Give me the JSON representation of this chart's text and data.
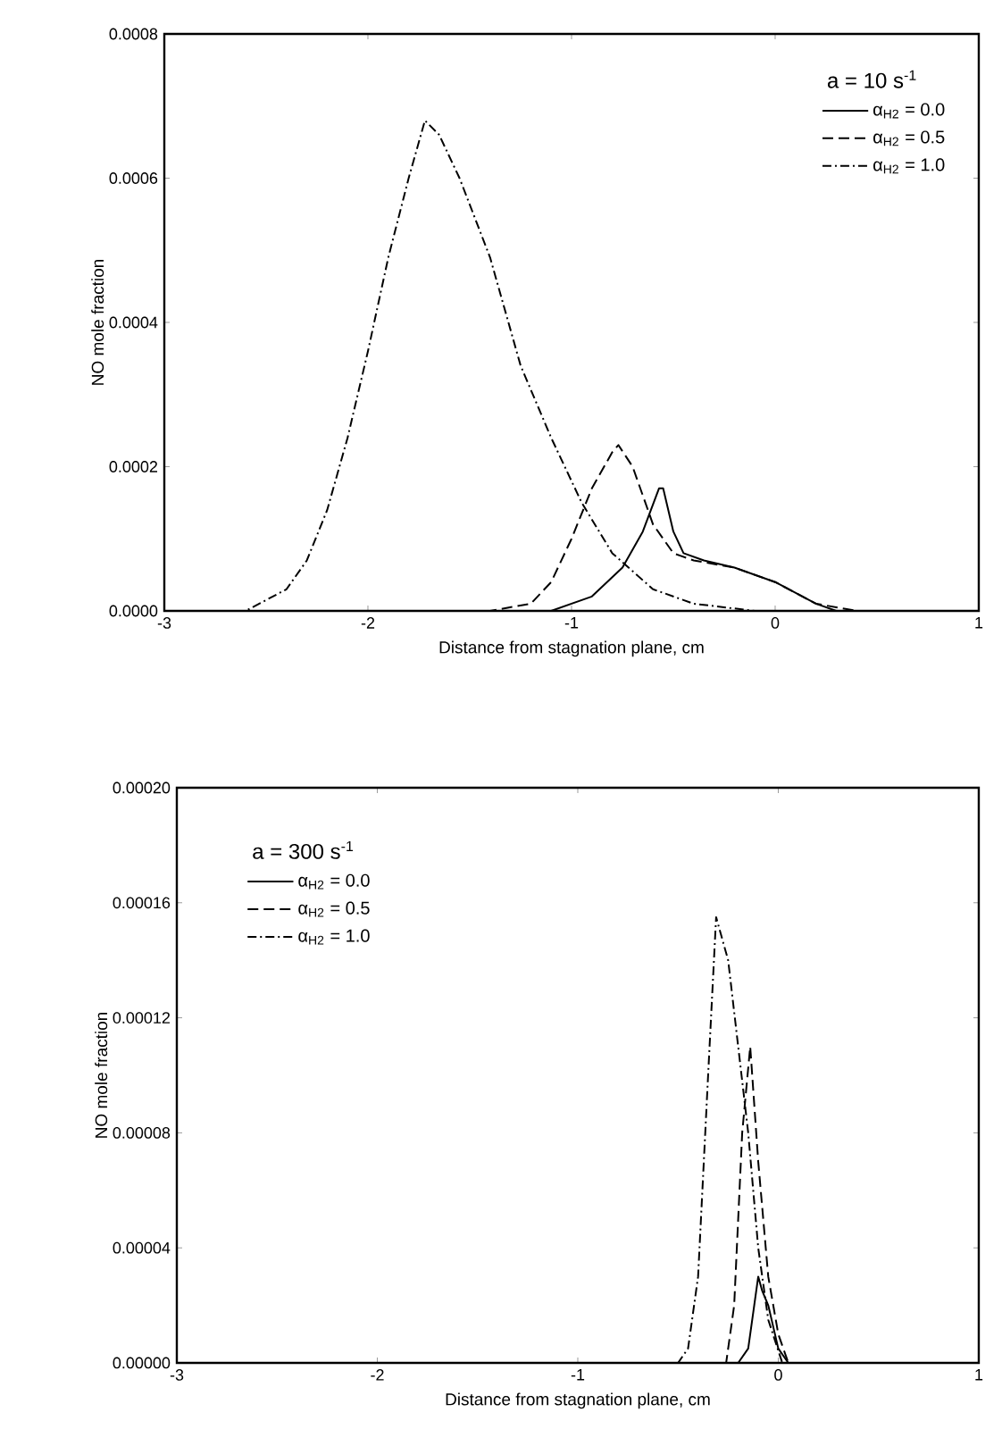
{
  "chart_data": [
    {
      "type": "line",
      "xlabel": "Distance from stagnation plane, cm",
      "ylabel": "NO mole fraction",
      "legend_title": "a = 10 s$^{-1}$",
      "legend": "top right",
      "xlim": [
        -3,
        1
      ],
      "ylim": [
        0,
        0.0008
      ],
      "xticks": [
        -3,
        -2,
        -1,
        0,
        1
      ],
      "yticks": [
        {
          "value": 0,
          "label": "0.0000"
        },
        {
          "value": 0.0002,
          "label": "0.0002"
        },
        {
          "value": 0.0004,
          "label": "0.0004"
        },
        {
          "value": 0.0006,
          "label": "0.0006"
        },
        {
          "value": 0.0008,
          "label": "0.0008"
        }
      ],
      "series": [
        {
          "name": "α$_{H2}$ = 0.0",
          "color": "#000000",
          "line_style": "solid",
          "x": [
            -3,
            -1.1,
            -0.9,
            -0.75,
            -0.65,
            -0.57,
            -0.55,
            -0.5,
            -0.45,
            -0.35,
            -0.2,
            0,
            0.2,
            0.3,
            1
          ],
          "values": [
            0,
            0,
            2e-05,
            6e-05,
            0.00011,
            0.00017,
            0.00017,
            0.00011,
            8e-05,
            7e-05,
            6e-05,
            4e-05,
            1e-05,
            0,
            0
          ]
        },
        {
          "name": "α$_{H2}$ = 0.5",
          "color": "#000000",
          "line_style": "dashed",
          "x": [
            -3,
            -1.4,
            -1.2,
            -1.1,
            -1.0,
            -0.9,
            -0.8,
            -0.77,
            -0.7,
            -0.6,
            -0.5,
            -0.4,
            -0.2,
            0,
            0.2,
            0.4,
            1
          ],
          "values": [
            0,
            0,
            1e-05,
            4e-05,
            0.0001,
            0.00017,
            0.00022,
            0.00023,
            0.0002,
            0.00012,
            8e-05,
            7e-05,
            6e-05,
            4e-05,
            1e-05,
            0,
            0
          ]
        },
        {
          "name": "α$_{H2}$ = 1.0",
          "color": "#000000",
          "line_style": "dashdot",
          "x": [
            -3,
            -2.6,
            -2.4,
            -2.3,
            -2.2,
            -2.1,
            -2.0,
            -1.9,
            -1.8,
            -1.72,
            -1.65,
            -1.55,
            -1.4,
            -1.25,
            -1.1,
            -0.95,
            -0.8,
            -0.6,
            -0.4,
            -0.1,
            1
          ],
          "values": [
            0,
            0,
            3e-05,
            7e-05,
            0.00014,
            0.00024,
            0.00036,
            0.00049,
            0.0006,
            0.00068,
            0.00066,
            0.0006,
            0.00049,
            0.00034,
            0.00024,
            0.00015,
            8e-05,
            3e-05,
            1e-05,
            0,
            0
          ]
        }
      ]
    },
    {
      "type": "line",
      "xlabel": "Distance from stagnation plane, cm",
      "ylabel": "NO mole fraction",
      "legend_title": "a = 300 s$^{-1}$",
      "legend": "top left",
      "xlim": [
        -3,
        1
      ],
      "ylim": [
        0,
        0.0002
      ],
      "xticks": [
        -3,
        -2,
        -1,
        0,
        1
      ],
      "yticks": [
        {
          "value": 0,
          "label": "0.00000"
        },
        {
          "value": 4e-05,
          "label": "0.00004"
        },
        {
          "value": 8e-05,
          "label": "0.00008"
        },
        {
          "value": 0.00012,
          "label": "0.00012"
        },
        {
          "value": 0.00016,
          "label": "0.00016"
        },
        {
          "value": 0.0002,
          "label": "0.00020"
        }
      ],
      "series": [
        {
          "name": "α$_{H2}$ = 0.0",
          "color": "#000000",
          "line_style": "solid",
          "x": [
            -3,
            -0.2,
            -0.15,
            -0.12,
            -0.1,
            -0.08,
            -0.05,
            0,
            0.05,
            1
          ],
          "values": [
            0,
            0,
            5e-06,
            2e-05,
            3e-05,
            2.5e-05,
            2e-05,
            5e-06,
            0,
            0
          ]
        },
        {
          "name": "α$_{H2}$ = 0.5",
          "color": "#000000",
          "line_style": "dashed",
          "x": [
            -3,
            -0.26,
            -0.22,
            -0.18,
            -0.14,
            -0.1,
            -0.05,
            0,
            0.05,
            1
          ],
          "values": [
            0,
            0,
            2e-05,
            8e-05,
            0.00011,
            7e-05,
            3e-05,
            1e-05,
            0,
            0
          ]
        },
        {
          "name": "α$_{H2}$ = 1.0",
          "color": "#000000",
          "line_style": "dashdot",
          "x": [
            -3,
            -0.5,
            -0.45,
            -0.4,
            -0.35,
            -0.31,
            -0.25,
            -0.2,
            -0.15,
            -0.1,
            -0.05,
            0.02,
            1
          ],
          "values": [
            0,
            0,
            5e-06,
            3e-05,
            0.0001,
            0.000155,
            0.00014,
            0.00011,
            8e-05,
            4e-05,
            1.5e-05,
            0,
            0
          ]
        }
      ]
    }
  ]
}
